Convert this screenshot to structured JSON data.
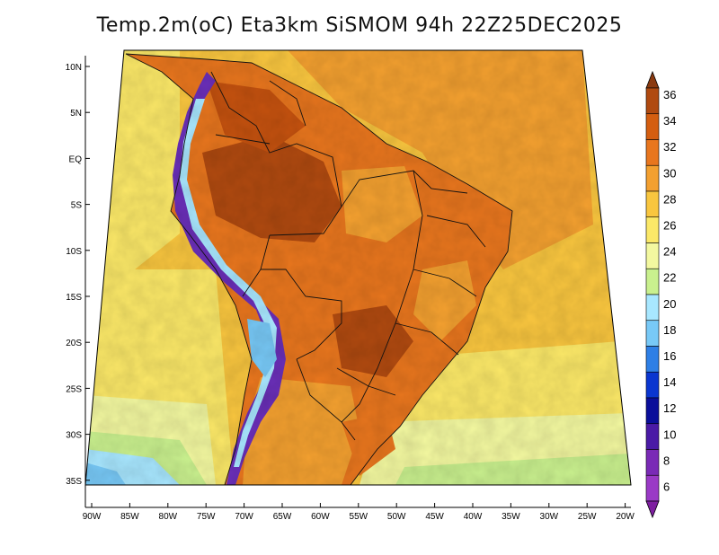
{
  "title": "Temp.2m(oC) Eta3km SiSMOM 94h 22Z25DEC2025",
  "lat_labels": [
    "10N",
    "5N",
    "EQ",
    "5S",
    "10S",
    "15S",
    "20S",
    "25S",
    "30S",
    "35S"
  ],
  "lon_labels": [
    "90W",
    "85W",
    "80W",
    "75W",
    "70W",
    "65W",
    "60W",
    "55W",
    "50W",
    "45W",
    "40W",
    "35W",
    "30W",
    "25W",
    "20W"
  ],
  "colorbar": {
    "labels": [
      "36",
      "34",
      "32",
      "30",
      "28",
      "26",
      "24",
      "22",
      "20",
      "18",
      "16",
      "14",
      "12",
      "10",
      "8",
      "6"
    ],
    "colors": [
      "#8a3a10",
      "#b04a10",
      "#d45e10",
      "#e8761e",
      "#f3a030",
      "#f9c63f",
      "#fbe868",
      "#f3f8a0",
      "#c9f08e",
      "#a8e7ff",
      "#78c9f7",
      "#2e7fe6",
      "#0a36d0",
      "#0a0e9a",
      "#4a1aa6",
      "#7a2ab6",
      "#9a3ac6",
      "#7e1fa0"
    ]
  },
  "colors": {
    "ocean_warm": "#f3a030",
    "ocean_mild": "#f9c63f",
    "ocean_cool": "#fbe868",
    "land_hot": "#e8761e",
    "land_very_hot": "#b04a10",
    "andes_cold": "#6a2fb8"
  }
}
